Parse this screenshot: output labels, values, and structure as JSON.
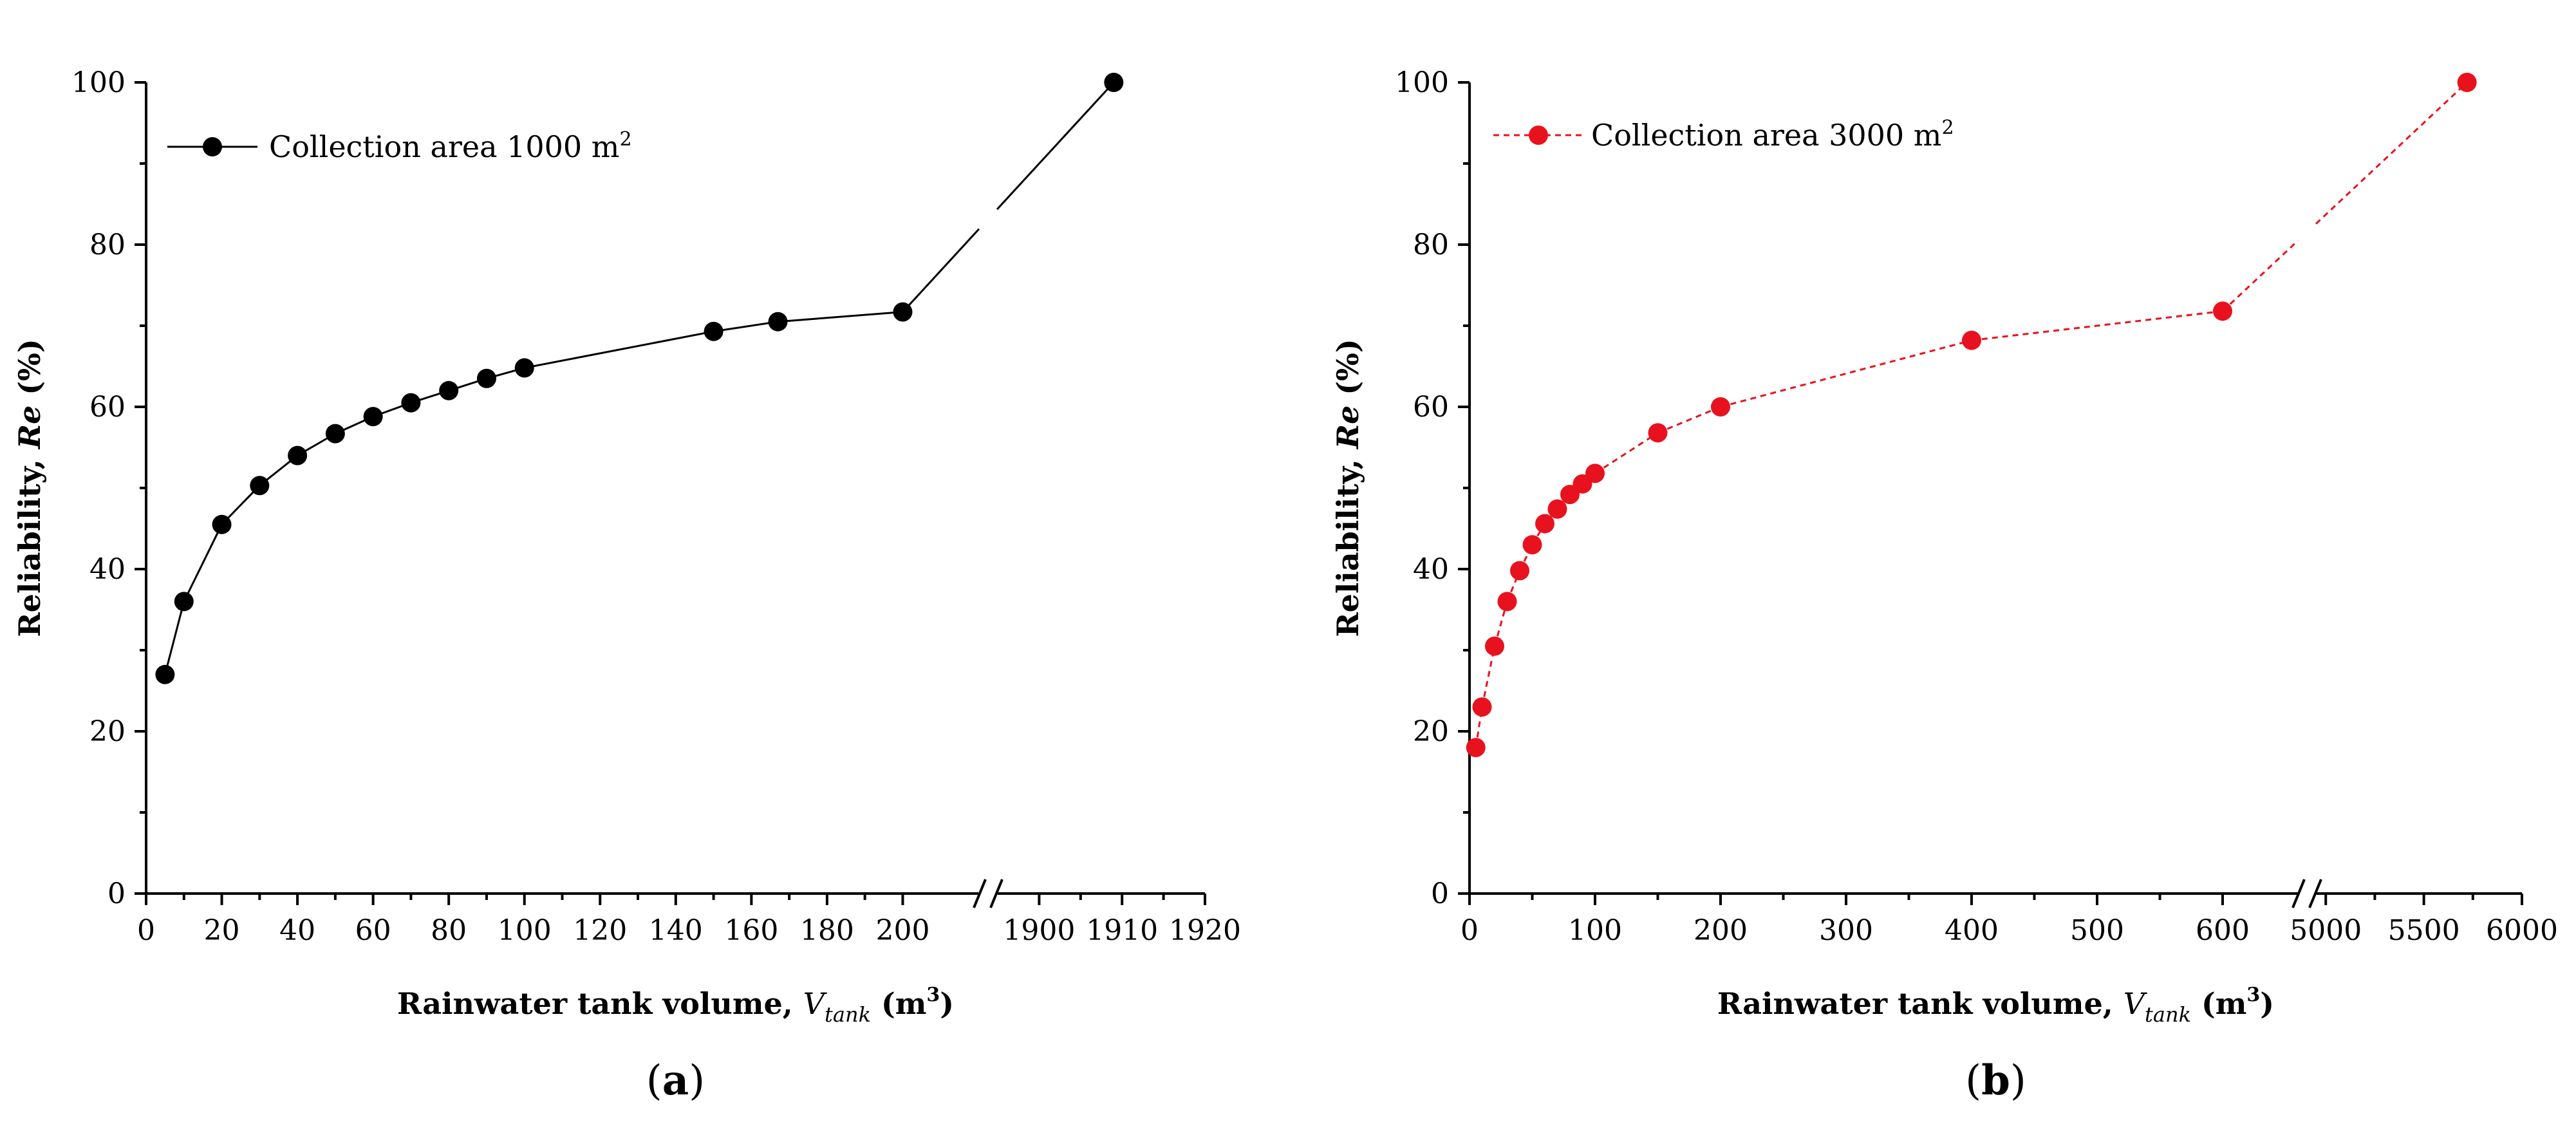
{
  "chart_data": [
    {
      "type": "line",
      "panel_label": "a",
      "legend_position": "top-left",
      "color": "#000000",
      "line_style": "solid",
      "xlabel": {
        "main": "Rainwater tank volume, ",
        "var": "V",
        "sub": "tank",
        "unit_open": " (m",
        "unit_sup": "3",
        "unit_close": ")"
      },
      "ylabel": {
        "main": "Reliability, ",
        "var": "Re",
        "unit": " (%)"
      },
      "ylim": [
        0,
        100
      ],
      "y_ticks": [
        "0",
        "20",
        "40",
        "60",
        "80",
        "100"
      ],
      "x_axis_break": true,
      "x_segments": [
        {
          "range": [
            0,
            220
          ],
          "ticks": [
            "0",
            "20",
            "40",
            "60",
            "80",
            "100",
            "120",
            "140",
            "160",
            "180",
            "200"
          ],
          "tick_values": [
            0,
            20,
            40,
            60,
            80,
            100,
            120,
            140,
            160,
            180,
            200
          ]
        },
        {
          "range": [
            1895,
            1920
          ],
          "ticks": [
            "1900",
            "1910",
            "1920"
          ],
          "tick_values": [
            1900,
            1910,
            1920
          ]
        }
      ],
      "series": [
        {
          "name": "Collection area 1000 m",
          "name_sup": "2",
          "x": [
            5,
            10,
            20,
            30,
            40,
            50,
            60,
            70,
            80,
            90,
            100,
            150,
            167,
            200,
            1909
          ],
          "y": [
            27,
            36,
            45.5,
            50.3,
            54,
            56.7,
            58.8,
            60.5,
            62,
            63.5,
            64.8,
            69.3,
            70.5,
            71.7,
            100
          ]
        }
      ]
    },
    {
      "type": "line",
      "panel_label": "b",
      "legend_position": "top-left",
      "color": "#e8121e",
      "line_style": "dashed",
      "xlabel": {
        "main": "Rainwater tank volume, ",
        "var": "V",
        "sub": "tank",
        "unit_open": " (m",
        "unit_sup": "3",
        "unit_close": ")"
      },
      "ylabel": {
        "main": "Reliability, ",
        "var": "Re",
        "unit": " (%)"
      },
      "ylim": [
        0,
        100
      ],
      "y_ticks": [
        "0",
        "20",
        "40",
        "60",
        "80",
        "100"
      ],
      "x_axis_break": true,
      "x_segments": [
        {
          "range": [
            0,
            660
          ],
          "ticks": [
            "0",
            "100",
            "200",
            "300",
            "400",
            "500",
            "600"
          ],
          "tick_values": [
            0,
            100,
            200,
            300,
            400,
            500,
            600
          ]
        },
        {
          "range": [
            4950,
            6000
          ],
          "ticks": [
            "5000",
            "5500",
            "6000"
          ],
          "tick_values": [
            5000,
            5500,
            6000
          ]
        }
      ],
      "series": [
        {
          "name": "Collection area 3000 m",
          "name_sup": "2",
          "x": [
            5,
            10,
            20,
            30,
            40,
            50,
            60,
            70,
            80,
            90,
            100,
            150,
            200,
            400,
            600,
            5720
          ],
          "y": [
            18,
            23,
            30.5,
            36,
            39.8,
            43,
            45.6,
            47.4,
            49.2,
            50.5,
            51.8,
            56.8,
            60,
            68.2,
            71.8,
            100
          ]
        }
      ]
    }
  ]
}
